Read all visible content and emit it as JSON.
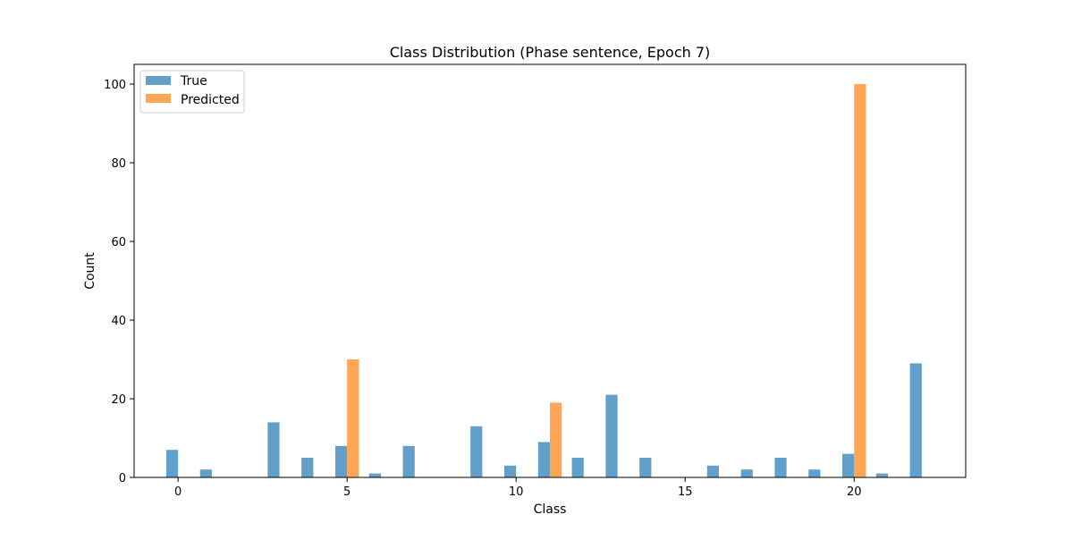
{
  "chart_data": {
    "type": "bar",
    "title": "Class Distribution (Phase sentence, Epoch 7)",
    "xlabel": "Class",
    "ylabel": "Count",
    "xlim": [
      -1.3,
      23.3
    ],
    "ylim": [
      0,
      105
    ],
    "x_ticks": [
      0,
      5,
      10,
      15,
      20
    ],
    "y_ticks": [
      0,
      20,
      40,
      60,
      80,
      100
    ],
    "grid": false,
    "legend_position": "top-left",
    "series": [
      {
        "name": "True",
        "color": "#1f77b4",
        "opacity": 0.7,
        "offset": -0.175,
        "points": [
          {
            "x": 0,
            "y": 7
          },
          {
            "x": 1,
            "y": 2
          },
          {
            "x": 3,
            "y": 14
          },
          {
            "x": 4,
            "y": 5
          },
          {
            "x": 5,
            "y": 8
          },
          {
            "x": 6,
            "y": 1
          },
          {
            "x": 7,
            "y": 8
          },
          {
            "x": 9,
            "y": 13
          },
          {
            "x": 10,
            "y": 3
          },
          {
            "x": 11,
            "y": 9
          },
          {
            "x": 12,
            "y": 5
          },
          {
            "x": 13,
            "y": 21
          },
          {
            "x": 14,
            "y": 5
          },
          {
            "x": 16,
            "y": 3
          },
          {
            "x": 17,
            "y": 2
          },
          {
            "x": 18,
            "y": 5
          },
          {
            "x": 19,
            "y": 2
          },
          {
            "x": 20,
            "y": 6
          },
          {
            "x": 21,
            "y": 1
          },
          {
            "x": 22,
            "y": 29
          }
        ]
      },
      {
        "name": "Predicted",
        "color": "#ff7f0e",
        "opacity": 0.7,
        "offset": 0.175,
        "points": [
          {
            "x": 5,
            "y": 30
          },
          {
            "x": 11,
            "y": 19
          },
          {
            "x": 20,
            "y": 100
          }
        ]
      }
    ],
    "bar_width": 0.35
  }
}
